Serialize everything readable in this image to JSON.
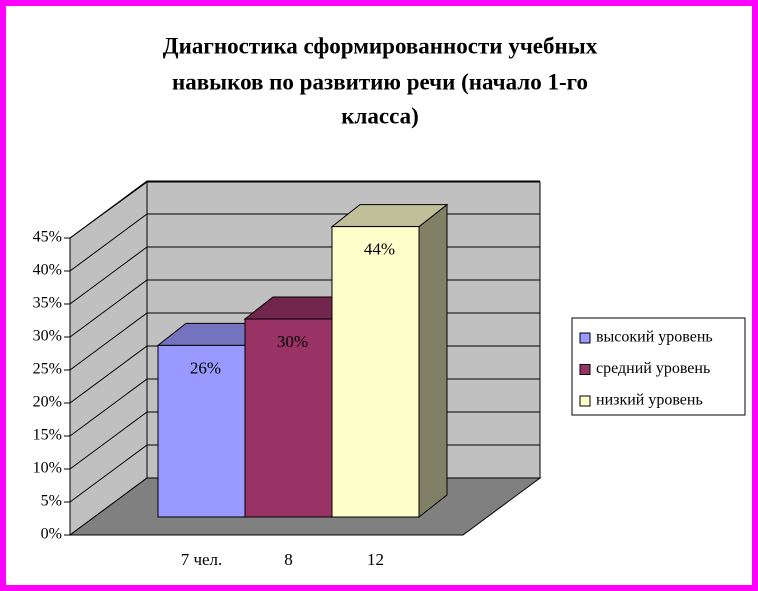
{
  "chart_data": {
    "type": "bar3d",
    "title": [
      "Диагностика сформированности учебных",
      "навыков по развитию речи (начало 1-го",
      "класса)"
    ],
    "categories": [
      "7 чел.",
      "8",
      "12"
    ],
    "values": [
      26,
      30,
      44
    ],
    "value_labels": [
      "26%",
      "30%",
      "44%"
    ],
    "colors": [
      "#9999ff",
      "#993366",
      "#ffffcc"
    ],
    "legend": [
      "высокий уровень",
      "средний уровень",
      "низкий уровень"
    ],
    "ylim": [
      0,
      45
    ],
    "yticks": [
      {
        "value": 0,
        "label": "0%"
      },
      {
        "value": 5,
        "label": "5%"
      },
      {
        "value": 10,
        "label": "10%"
      },
      {
        "value": 15,
        "label": "15%"
      },
      {
        "value": 20,
        "label": "20%"
      },
      {
        "value": 25,
        "label": "25%"
      },
      {
        "value": 30,
        "label": "30%"
      },
      {
        "value": 35,
        "label": "35%"
      },
      {
        "value": 40,
        "label": "40%"
      },
      {
        "value": 45,
        "label": "45%"
      }
    ],
    "grid": true
  }
}
